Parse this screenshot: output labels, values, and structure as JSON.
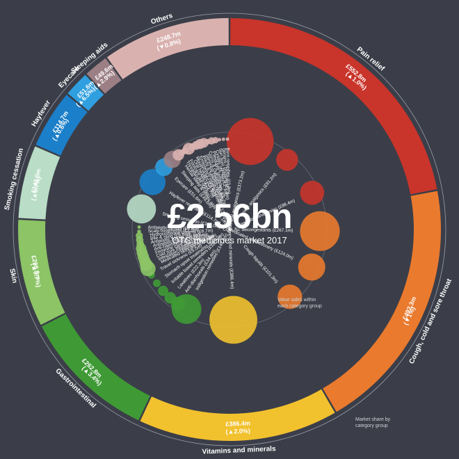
{
  "chart_data": {
    "type": "sunburst",
    "center_total": "£2.56bn",
    "center_subtitle": "OTC medicines market 2017",
    "notes": {
      "market_share": [
        "Market share by",
        "category group"
      ],
      "value_sales": [
        "Value sales within",
        "each category group"
      ]
    },
    "categories": [
      {
        "name": "Pain relief",
        "value_text": "£552.8m",
        "change_text": "(▲1.0%)",
        "value": 552.8,
        "color": "#c9342b",
        "items": [
          {
            "name": "Adult oral analgesics",
            "value_text": "(£373.2m)",
            "value": 373.2
          },
          {
            "name": "Topical analgesics",
            "value_text": "(£81.2m)",
            "value": 81.2
          },
          {
            "name": "Paediatric analgesics",
            "value_text": "(£98.4m)",
            "value": 98.4
          }
        ]
      },
      {
        "name": "Cough, cold and sore throat",
        "value_text": "£492.3m",
        "change_text": "(▼1%)",
        "value": 492.3,
        "color": "#ea7a2e",
        "items": [
          {
            "name": "Cold, flu, decongestants",
            "value_text": "(£267.1m)",
            "value": 267.1
          },
          {
            "name": "Medicated confectionery",
            "value_text": "(£124.0m)",
            "value": 124.0
          },
          {
            "name": "Cough liquids",
            "value_text": "(£101.3m)",
            "value": 101.3
          }
        ]
      },
      {
        "name": "Vitamins and minerals",
        "value_text": "£386.4m",
        "change_text": "(▲2.0%)",
        "value": 386.4,
        "color": "#f2c12e",
        "items": [
          {
            "name": "Vitamins and minerals",
            "value_text": "(£386.4m)",
            "value": 386.4
          }
        ]
      },
      {
        "name": "Gastrointestinal",
        "value_text": "£262.8m",
        "change_text": "(▲3.4%)",
        "value": 262.8,
        "color": "#3f9a35",
        "items": [
          {
            "name": "Indigestion remedies",
            "value_text": "(£148.9m)",
            "value": 148.9
          },
          {
            "name": "Anti-diarrhoeals",
            "value_text": "(£34.4m)",
            "value": 34.4
          },
          {
            "name": "Laxatives",
            "value_text": "(£22.3m)",
            "value": 22.3
          },
          {
            "name": "Irritable bowel remedies",
            "value_text": "(£18.2m)",
            "value": 18.2
          },
          {
            "name": "Stomach upset treatments",
            "value_text": "(£10.0m)",
            "value": 10.0
          },
          {
            "name": "Travel sickness",
            "value_text": "(£9.0m)",
            "value": 9.0
          }
        ]
      },
      {
        "name": "Skin",
        "value_text": "£208.9m",
        "change_text": "(▲0.7%)",
        "value": 208.9,
        "color": "#8cc466",
        "items": [
          {
            "name": "Medicated skincare",
            "value_text": "(£38.5m)",
            "value": 38.5
          },
          {
            "name": "Infestation treatments",
            "value_text": "(£27.5m)",
            "value": 27.5
          },
          {
            "name": "Cold sore treatments",
            "value_text": "(£22.3m)",
            "value": 22.3
          },
          {
            "name": "Feminine care",
            "value_text": "(£22.3m)",
            "value": 22.3
          },
          {
            "name": "Anti-haemorrhoids",
            "value_text": "(£20.7m)",
            "value": 20.7
          },
          {
            "name": "Antiseptic creams",
            "value_text": "(£18.5m)",
            "value": 18.5
          },
          {
            "name": "Antiseptic liquids",
            "value_text": "(£9.8m)",
            "value": 9.8
          },
          {
            "name": "Bite & sting",
            "value_text": "(£9.5m)",
            "value": 9.5
          },
          {
            "name": "Hydrocortisone creams",
            "value_text": "(£8.7m)",
            "value": 8.7
          },
          {
            "name": "Scalp treatments",
            "value_text": "(£2.5m)",
            "value": 2.5
          },
          {
            "name": "Antiseptic sprays",
            "value_text": "(£0.3m)",
            "value": 0.3
          }
        ]
      },
      {
        "name": "Smoking cessation",
        "value_text": "£143.0m",
        "change_text": "(▲0.7%)",
        "value": 143.0,
        "color": "#b9ddc6",
        "items": [
          {
            "name": "Smoking cessation",
            "value_text": "(£143.0m)",
            "value": 143.0
          }
        ]
      },
      {
        "name": "Hayfever",
        "value_text": "£114.7m",
        "change_text": "(▲0.6%)",
        "value": 114.7,
        "color": "#1c7fc9",
        "items": [
          {
            "name": "Hayfever remedies",
            "value_text": "(£114.7m)",
            "value": 114.7
          }
        ]
      },
      {
        "name": "Eyecare",
        "value_text": "£51.6m",
        "change_text": "(▲6.5%)",
        "value": 51.6,
        "color": "#2f9fe0",
        "items": [
          {
            "name": "Eyecare",
            "value_text": "(£51.6m)",
            "value": 51.6
          }
        ]
      },
      {
        "name": "Sleeping aids",
        "value_text": "£49.6m",
        "change_text": "(▲2.9%)",
        "value": 49.6,
        "color": "#9b7f85",
        "items": [
          {
            "name": "Sleeping aids",
            "value_text": "(£49.6m)",
            "value": 49.6
          }
        ]
      },
      {
        "name": "Others",
        "value_text": "£248.7m",
        "change_text": "(▼0.8%)",
        "value": 248.7,
        "color": "#d9b2b0",
        "items": [
          {
            "name": "Herbal sleep & stress aids",
            "value_text": "(£22.1m)",
            "value": 22.1
          },
          {
            "name": "Threadworm",
            "value_text": "(£6.9m)",
            "value": 6.9
          },
          {
            "name": "Footcare",
            "value_text": "(£8.5m)",
            "value": 8.5
          },
          {
            "name": "Oral health",
            "value_text": "(£23.7m)",
            "value": 23.7
          },
          {
            "name": "Mouth ulcers",
            "value_text": "(£9.5m)",
            "value": 9.5
          },
          {
            "name": "Emergency contraception",
            "value_text": "(£13.0m)",
            "value": 13.0
          },
          {
            "name": "Warts & verrucas",
            "value_text": "(£17.2m)",
            "value": 17.2
          },
          {
            "name": "Slimming tablets",
            "value_text": "(£16.0m)",
            "value": 16.0
          },
          {
            "name": "Corns & calluses",
            "value_text": "(£5.6m)",
            "value": 5.6
          },
          {
            "name": "Paediatric remedies",
            "value_text": "(£8.7m)",
            "value": 8.7
          },
          {
            "name": "Cystitis",
            "value_text": "(£6.7m)",
            "value": 6.7
          },
          {
            "name": "Sun burn preps",
            "value_text": "(£2.1m)",
            "value": 2.1
          },
          {
            "name": "Sprains / bruising",
            "value_text": "(£1.5m)",
            "value": 1.5
          },
          {
            "name": "Burn remedies",
            "value_text": "(£0.8m)",
            "value": 0.8
          }
        ]
      }
    ]
  }
}
